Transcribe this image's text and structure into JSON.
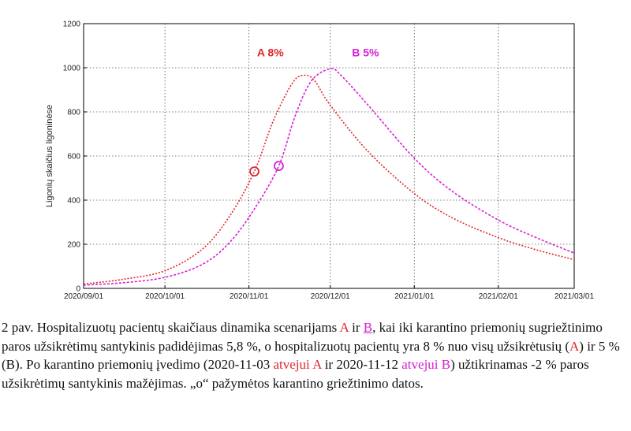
{
  "chart_data": {
    "type": "line",
    "ylabel": "Ligonių skaičius ligoninėse",
    "ylim": [
      0,
      1200
    ],
    "yticks": [
      0,
      200,
      400,
      600,
      800,
      1000,
      1200
    ],
    "xlim": [
      "2020-09-01",
      "2021-03-01"
    ],
    "xticks": [
      "2020/09/01",
      "2020/10/01",
      "2020/11/01",
      "2020/12/01",
      "2021/01/01",
      "2021/02/01",
      "2021/03/01"
    ],
    "grid": true,
    "series": [
      {
        "name": "A 8%",
        "color": "#e0262e",
        "x": [
          "2020-09-01",
          "2020-09-15",
          "2020-10-01",
          "2020-10-15",
          "2020-10-25",
          "2020-11-03",
          "2020-11-10",
          "2020-11-17",
          "2020-11-21",
          "2020-11-25",
          "2020-12-01",
          "2020-12-15",
          "2021-01-01",
          "2021-01-15",
          "2021-02-01",
          "2021-02-15",
          "2021-03-01"
        ],
        "y": [
          20,
          40,
          80,
          180,
          330,
          530,
          760,
          930,
          965,
          945,
          830,
          620,
          430,
          320,
          230,
          175,
          130
        ]
      },
      {
        "name": "B 5%",
        "color": "#d61fd6",
        "x": [
          "2020-09-01",
          "2020-09-15",
          "2020-10-01",
          "2020-10-15",
          "2020-10-25",
          "2020-11-03",
          "2020-11-12",
          "2020-11-18",
          "2020-11-24",
          "2020-12-01",
          "2020-12-05",
          "2020-12-15",
          "2021-01-01",
          "2021-01-15",
          "2021-02-01",
          "2021-02-15",
          "2021-03-01"
        ],
        "y": [
          15,
          25,
          50,
          110,
          210,
          360,
          555,
          780,
          940,
          995,
          965,
          830,
          590,
          440,
          310,
          230,
          160
        ]
      }
    ],
    "markers": [
      {
        "series": "A 8%",
        "x": "2020-11-03",
        "y": 530,
        "symbol": "o"
      },
      {
        "series": "B 5%",
        "x": "2020-11-12",
        "y": 555,
        "symbol": "o"
      }
    ],
    "annotations": [
      {
        "text": "A 8%",
        "x": "2020-11-04",
        "y": 930,
        "color": "#e0262e"
      },
      {
        "text": "B 5%",
        "x": "2020-12-09",
        "y": 930,
        "color": "#d61fd6"
      }
    ]
  },
  "caption": {
    "p1": "2 pav. Hospitalizuotų pacientų skaičiaus dinamika scenarijams ",
    "a1": "A",
    "p2": " ir ",
    "b1": "B",
    "p3": ", kai iki karantino priemonių sugriežtinimo paros užsikrėtimų santykinis padidėjimas 5,8 %, o hospitalizuotų pacientų yra 8 % nuo visų užsikrėtusių (",
    "a2": "A",
    "p4": ") ir 5 % (B). Po karantino priemonių įvedimo (2020-11-03 ",
    "a3": "atvejui A",
    "p5": " ir 2020-11-12 ",
    "b2": "atvejui B",
    "p6": ") užtikrinamas -2 % paros užsikrėtimų santykinis mažėjimas. „o“ pažymėtos karantino griežtinimo datos."
  }
}
